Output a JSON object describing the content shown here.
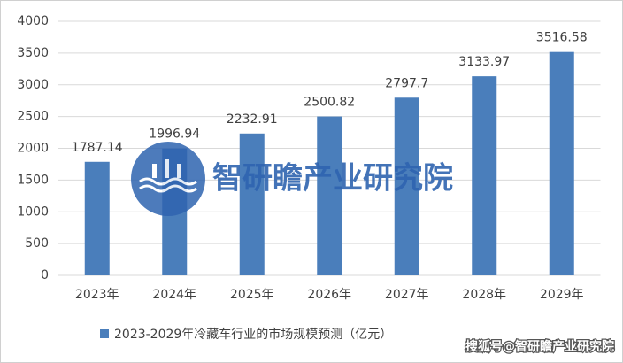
{
  "chart_data": {
    "type": "bar",
    "categories": [
      "2023年",
      "2024年",
      "2025年",
      "2026年",
      "2027年",
      "2028年",
      "2029年"
    ],
    "series": [
      {
        "name": "2023-2029年冷藏车行业的市场规模预测（亿元）",
        "color": "#4a7ebb",
        "values": [
          1787.14,
          1996.94,
          2232.91,
          2500.82,
          2797.7,
          3133.97,
          3516.58
        ]
      }
    ],
    "ylim": [
      0,
      4000
    ],
    "yticks": [
      0,
      500,
      1000,
      1500,
      2000,
      2500,
      3000,
      3500,
      4000
    ],
    "grid": true,
    "legend": "bottom"
  },
  "watermark": "智研瞻产业研究院",
  "source": "搜狐号@智研瞻产业研究院"
}
